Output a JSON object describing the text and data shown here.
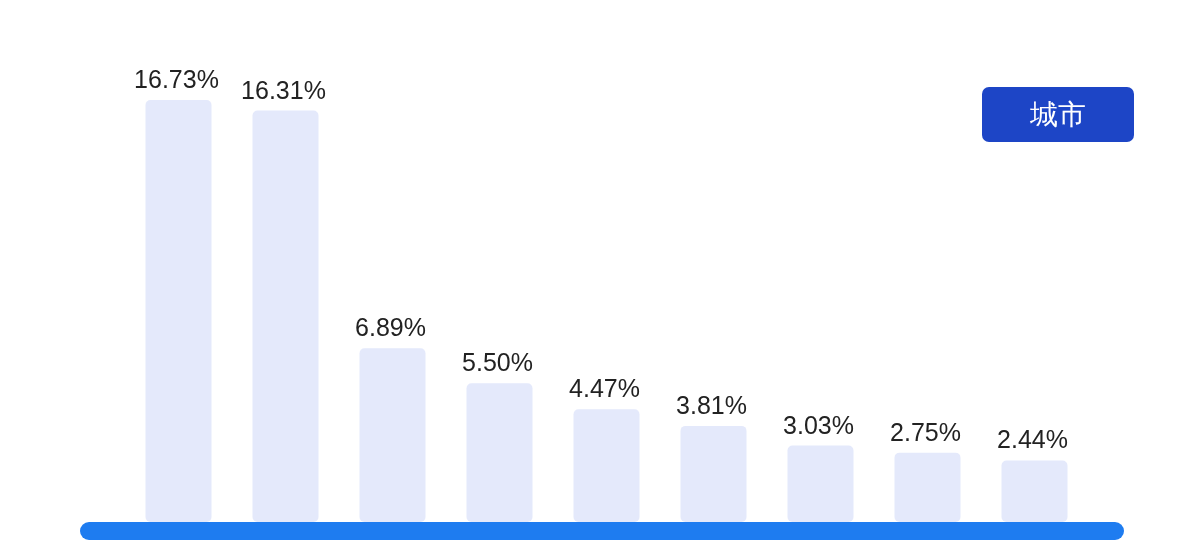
{
  "chart_data": {
    "type": "bar",
    "title": "城市",
    "categories": [
      null,
      null,
      null,
      null,
      null,
      null,
      null,
      null,
      null
    ],
    "values": [
      16.73,
      16.31,
      6.89,
      5.5,
      4.47,
      3.81,
      3.03,
      2.75,
      2.44
    ],
    "value_labels": [
      "16.73%",
      "16.31%",
      "6.89%",
      "5.50%",
      "4.47%",
      "3.81%",
      "3.03%",
      "2.75%",
      "2.44%"
    ],
    "color": "#e4e9fb"
  }
}
